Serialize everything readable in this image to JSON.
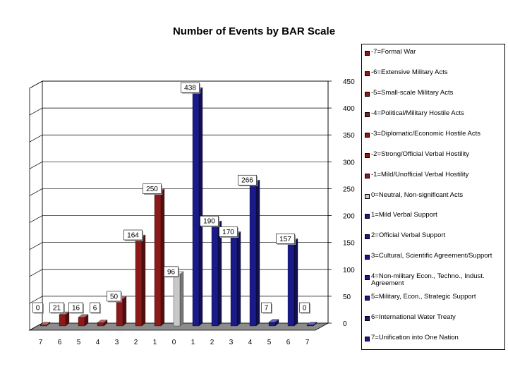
{
  "chart_data": {
    "type": "bar",
    "title": "Number of Events by BAR Scale",
    "xlabel": "",
    "ylabel": "",
    "ylim": [
      0,
      450
    ],
    "yticks": [
      0,
      50,
      100,
      150,
      200,
      250,
      300,
      350,
      400,
      450
    ],
    "categories": [
      "7",
      "6",
      "5",
      "4",
      "3",
      "2",
      "1",
      "0",
      "1",
      "2",
      "3",
      "4",
      "5",
      "6",
      "7"
    ],
    "values": [
      0,
      21,
      16,
      6,
      50,
      164,
      250,
      96,
      438,
      190,
      170,
      266,
      7,
      157,
      0
    ],
    "data_labels": [
      "0",
      "21",
      "16",
      "6",
      "50",
      "164",
      "250",
      "96",
      "438",
      "190",
      "170",
      "266",
      "7",
      "157",
      "0"
    ],
    "bar_colors": [
      "#8b1a1a",
      "#8b1a1a",
      "#8b1a1a",
      "#8b1a1a",
      "#8b1a1a",
      "#8b1a1a",
      "#8b1a1a",
      "#c8c8c8",
      "#1a1a8b",
      "#1a1a8b",
      "#1a1a8b",
      "#1a1a8b",
      "#1a1a8b",
      "#1a1a8b",
      "#1a1a8b"
    ],
    "grid": true,
    "legend_position": "right",
    "three_d": true,
    "legend": [
      {
        "label": "-7=Formal War",
        "color": "#8b1a1a"
      },
      {
        "label": "-6=Extensive Military Acts",
        "color": "#8b1a1a"
      },
      {
        "label": "-5=Small-scale Military Acts",
        "color": "#8b1a1a"
      },
      {
        "label": "-4=Political/Military Hostile Acts",
        "color": "#8b1a1a"
      },
      {
        "label": "-3=Diplomatic/Economic Hostile Acts",
        "color": "#8b1a1a"
      },
      {
        "label": "-2=Strong/Official Verbal Hostility",
        "color": "#8b1a1a"
      },
      {
        "label": "-1=Mild/Unofficial Verbal Hostility",
        "color": "#8b1a1a"
      },
      {
        "label": "0=Neutral, Non-significant Acts",
        "color": "#c8c8c8"
      },
      {
        "label": "1=Mild Verbal Support",
        "color": "#1a1a8b"
      },
      {
        "label": "2=Official Verbal Support",
        "color": "#1a1a8b"
      },
      {
        "label": "3=Cultural, Scientific Agreement/Support",
        "color": "#1a1a8b"
      },
      {
        "label": "4=Non-military Econ., Techno., Indust. Agreement",
        "color": "#1a1a8b"
      },
      {
        "label": "5=Military, Econ., Strategic Support",
        "color": "#1a1a8b"
      },
      {
        "label": "6=International Water Treaty",
        "color": "#1a1a8b"
      },
      {
        "label": "7=Unification into One Nation",
        "color": "#1a1a8b"
      }
    ]
  }
}
